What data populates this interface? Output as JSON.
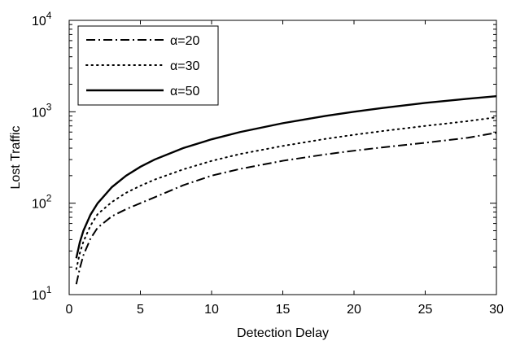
{
  "chart_data": {
    "type": "line",
    "title": "",
    "xlabel": "Detection Delay",
    "ylabel": "Lost Traffic",
    "xlim": [
      0,
      30
    ],
    "ylim": [
      10,
      10000
    ],
    "yscale": "log",
    "grid": false,
    "legend_position": "top-left",
    "x_ticks": [
      "0",
      "5",
      "10",
      "15",
      "20",
      "25",
      "30"
    ],
    "y_ticks": [
      {
        "base": "10",
        "exp": "1"
      },
      {
        "base": "10",
        "exp": "2"
      },
      {
        "base": "10",
        "exp": "3"
      },
      {
        "base": "10",
        "exp": "4"
      }
    ],
    "x": [
      0.5,
      0.75,
      1,
      1.5,
      2,
      3,
      4,
      5,
      6,
      8,
      10,
      12,
      15,
      18,
      20,
      22,
      25,
      28,
      30
    ],
    "series": [
      {
        "name": "α=20",
        "style": "dashdot",
        "values": [
          13,
          19.5,
          27,
          41,
          54,
          72,
          86,
          100,
          116,
          157,
          200,
          237,
          291,
          342,
          375,
          408,
          458,
          520,
          590
        ]
      },
      {
        "name": "α=30",
        "style": "dotted",
        "values": [
          19,
          28.5,
          38,
          57,
          76,
          103,
          130,
          155,
          181,
          234,
          290,
          345,
          423,
          505,
          560,
          615,
          700,
          790,
          870
        ]
      },
      {
        "name": "α=50",
        "style": "solid",
        "values": [
          25,
          37.5,
          50,
          75,
          100,
          150,
          200,
          250,
          300,
          400,
          500,
          600,
          750,
          900,
          1000,
          1100,
          1250,
          1390,
          1480
        ]
      }
    ]
  }
}
